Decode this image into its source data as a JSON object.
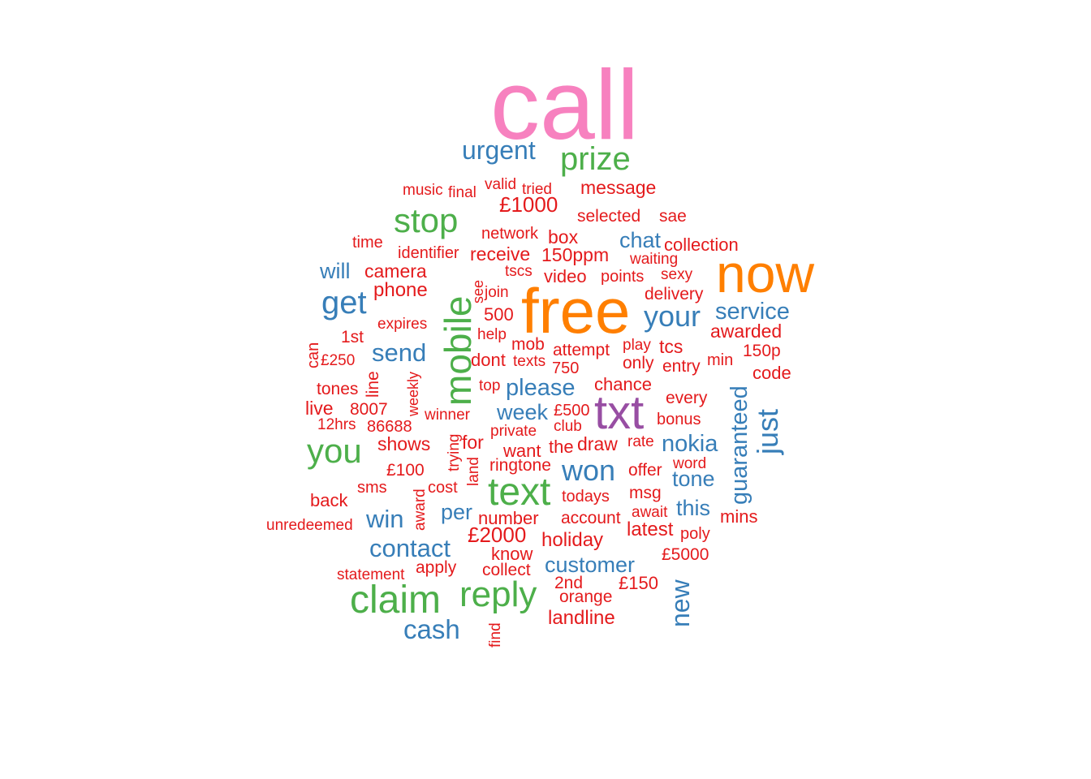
{
  "palette": {
    "pink": "#f781bf",
    "orange": "#ff7f00",
    "purple": "#984ea3",
    "green": "#4daf4a",
    "blue": "#377eb8",
    "red": "#e41a1c"
  },
  "words": [
    {
      "text": "call",
      "color": "pink"
    },
    {
      "text": "free",
      "color": "orange"
    },
    {
      "text": "now",
      "color": "orange"
    },
    {
      "text": "txt",
      "color": "purple"
    },
    {
      "text": "mobile",
      "color": "green"
    },
    {
      "text": "text",
      "color": "green"
    },
    {
      "text": "claim",
      "color": "green"
    },
    {
      "text": "reply",
      "color": "green"
    },
    {
      "text": "stop",
      "color": "green"
    },
    {
      "text": "prize",
      "color": "green"
    },
    {
      "text": "you",
      "color": "green"
    },
    {
      "text": "get",
      "color": "blue"
    },
    {
      "text": "your",
      "color": "blue"
    },
    {
      "text": "just",
      "color": "blue"
    },
    {
      "text": "won",
      "color": "blue"
    },
    {
      "text": "urgent",
      "color": "blue"
    },
    {
      "text": "nokia",
      "color": "blue"
    },
    {
      "text": "guaranteed",
      "color": "blue"
    },
    {
      "text": "service",
      "color": "blue"
    },
    {
      "text": "new",
      "color": "blue"
    },
    {
      "text": "send",
      "color": "blue"
    },
    {
      "text": "please",
      "color": "blue"
    },
    {
      "text": "contact",
      "color": "blue"
    },
    {
      "text": "cash",
      "color": "blue"
    },
    {
      "text": "win",
      "color": "blue"
    },
    {
      "text": "customer",
      "color": "blue"
    },
    {
      "text": "week",
      "color": "blue"
    },
    {
      "text": "chat",
      "color": "blue"
    },
    {
      "text": "will",
      "color": "blue"
    },
    {
      "text": "tone",
      "color": "blue"
    },
    {
      "text": "this",
      "color": "blue"
    },
    {
      "text": "per",
      "color": "blue"
    },
    {
      "text": "£1000",
      "color": "red"
    },
    {
      "text": "£2000",
      "color": "red"
    },
    {
      "text": "message",
      "color": "red"
    },
    {
      "text": "selected",
      "color": "red"
    },
    {
      "text": "sae",
      "color": "red"
    },
    {
      "text": "music",
      "color": "red"
    },
    {
      "text": "final",
      "color": "red"
    },
    {
      "text": "valid",
      "color": "red"
    },
    {
      "text": "tried",
      "color": "red"
    },
    {
      "text": "time",
      "color": "red"
    },
    {
      "text": "network",
      "color": "red"
    },
    {
      "text": "box",
      "color": "red"
    },
    {
      "text": "collection",
      "color": "red"
    },
    {
      "text": "identifier",
      "color": "red"
    },
    {
      "text": "receive",
      "color": "red"
    },
    {
      "text": "150ppm",
      "color": "red"
    },
    {
      "text": "waiting",
      "color": "red"
    },
    {
      "text": "camera",
      "color": "red"
    },
    {
      "text": "tscs",
      "color": "red"
    },
    {
      "text": "sexy",
      "color": "red"
    },
    {
      "text": "phone",
      "color": "red"
    },
    {
      "text": "video",
      "color": "red"
    },
    {
      "text": "points",
      "color": "red"
    },
    {
      "text": "see",
      "color": "red"
    },
    {
      "text": "join",
      "color": "red"
    },
    {
      "text": "delivery",
      "color": "red"
    },
    {
      "text": "500",
      "color": "red"
    },
    {
      "text": "expires",
      "color": "red"
    },
    {
      "text": "1st",
      "color": "red"
    },
    {
      "text": "help",
      "color": "red"
    },
    {
      "text": "awarded",
      "color": "red"
    },
    {
      "text": "mob",
      "color": "red"
    },
    {
      "text": "can",
      "color": "red"
    },
    {
      "text": "attempt",
      "color": "red"
    },
    {
      "text": "play",
      "color": "red"
    },
    {
      "text": "tcs",
      "color": "red"
    },
    {
      "text": "150p",
      "color": "red"
    },
    {
      "text": "£250",
      "color": "red"
    },
    {
      "text": "dont",
      "color": "red"
    },
    {
      "text": "texts",
      "color": "red"
    },
    {
      "text": "only",
      "color": "red"
    },
    {
      "text": "min",
      "color": "red"
    },
    {
      "text": "line",
      "color": "red"
    },
    {
      "text": "750",
      "color": "red"
    },
    {
      "text": "entry",
      "color": "red"
    },
    {
      "text": "code",
      "color": "red"
    },
    {
      "text": "weekly",
      "color": "red"
    },
    {
      "text": "tones",
      "color": "red"
    },
    {
      "text": "top",
      "color": "red"
    },
    {
      "text": "chance",
      "color": "red"
    },
    {
      "text": "every",
      "color": "red"
    },
    {
      "text": "live",
      "color": "red"
    },
    {
      "text": "8007",
      "color": "red"
    },
    {
      "text": "£500",
      "color": "red"
    },
    {
      "text": "winner",
      "color": "red"
    },
    {
      "text": "bonus",
      "color": "red"
    },
    {
      "text": "12hrs",
      "color": "red"
    },
    {
      "text": "86688",
      "color": "red"
    },
    {
      "text": "private",
      "color": "red"
    },
    {
      "text": "club",
      "color": "red"
    },
    {
      "text": "shows",
      "color": "red"
    },
    {
      "text": "trying",
      "color": "red"
    },
    {
      "text": "for",
      "color": "red"
    },
    {
      "text": "draw",
      "color": "red"
    },
    {
      "text": "rate",
      "color": "red"
    },
    {
      "text": "want",
      "color": "red"
    },
    {
      "text": "the",
      "color": "red"
    },
    {
      "text": "ringtone",
      "color": "red"
    },
    {
      "text": "word",
      "color": "red"
    },
    {
      "text": "£100",
      "color": "red"
    },
    {
      "text": "land",
      "color": "red"
    },
    {
      "text": "offer",
      "color": "red"
    },
    {
      "text": "sms",
      "color": "red"
    },
    {
      "text": "cost",
      "color": "red"
    },
    {
      "text": "todays",
      "color": "red"
    },
    {
      "text": "msg",
      "color": "red"
    },
    {
      "text": "back",
      "color": "red"
    },
    {
      "text": "award",
      "color": "red"
    },
    {
      "text": "number",
      "color": "red"
    },
    {
      "text": "account",
      "color": "red"
    },
    {
      "text": "await",
      "color": "red"
    },
    {
      "text": "mins",
      "color": "red"
    },
    {
      "text": "unredeemed",
      "color": "red"
    },
    {
      "text": "latest",
      "color": "red"
    },
    {
      "text": "poly",
      "color": "red"
    },
    {
      "text": "holiday",
      "color": "red"
    },
    {
      "text": "know",
      "color": "red"
    },
    {
      "text": "£5000",
      "color": "red"
    },
    {
      "text": "statement",
      "color": "red"
    },
    {
      "text": "apply",
      "color": "red"
    },
    {
      "text": "collect",
      "color": "red"
    },
    {
      "text": "2nd",
      "color": "red"
    },
    {
      "text": "£150",
      "color": "red"
    },
    {
      "text": "orange",
      "color": "red"
    },
    {
      "text": "landline",
      "color": "red"
    },
    {
      "text": "find",
      "color": "red"
    }
  ]
}
